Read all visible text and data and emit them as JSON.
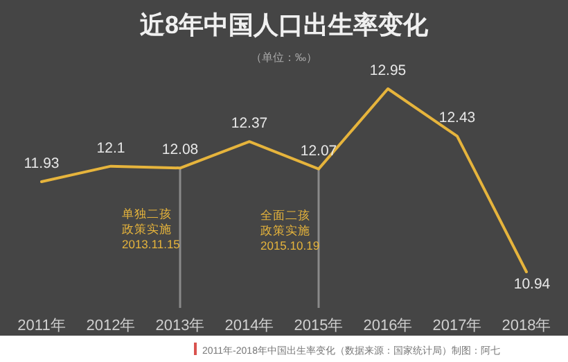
{
  "chart_data": {
    "type": "line",
    "title": "近8年中国人口出生率变化",
    "subtitle": "（单位：‰）",
    "categories": [
      "2011年",
      "2012年",
      "2013年",
      "2014年",
      "2015年",
      "2016年",
      "2017年",
      "2018年"
    ],
    "values": [
      11.93,
      12.1,
      12.08,
      12.37,
      12.07,
      12.95,
      12.43,
      10.94
    ],
    "color": "#e6b43c",
    "data_labels": true,
    "ref_lines": [
      {
        "axis": "x",
        "value": "2013年",
        "label": "单独二孩政策实施\n2013.11.15",
        "color": "#8a8a8a"
      },
      {
        "axis": "x",
        "value": "2015年",
        "label": "全面二孩政策实施\n2015.10.19",
        "color": "#8a8a8a"
      }
    ],
    "annotations": [
      "2011年-2018年中国出生率变化（数据来源：国家统计局）制图：阿七"
    ]
  }
}
